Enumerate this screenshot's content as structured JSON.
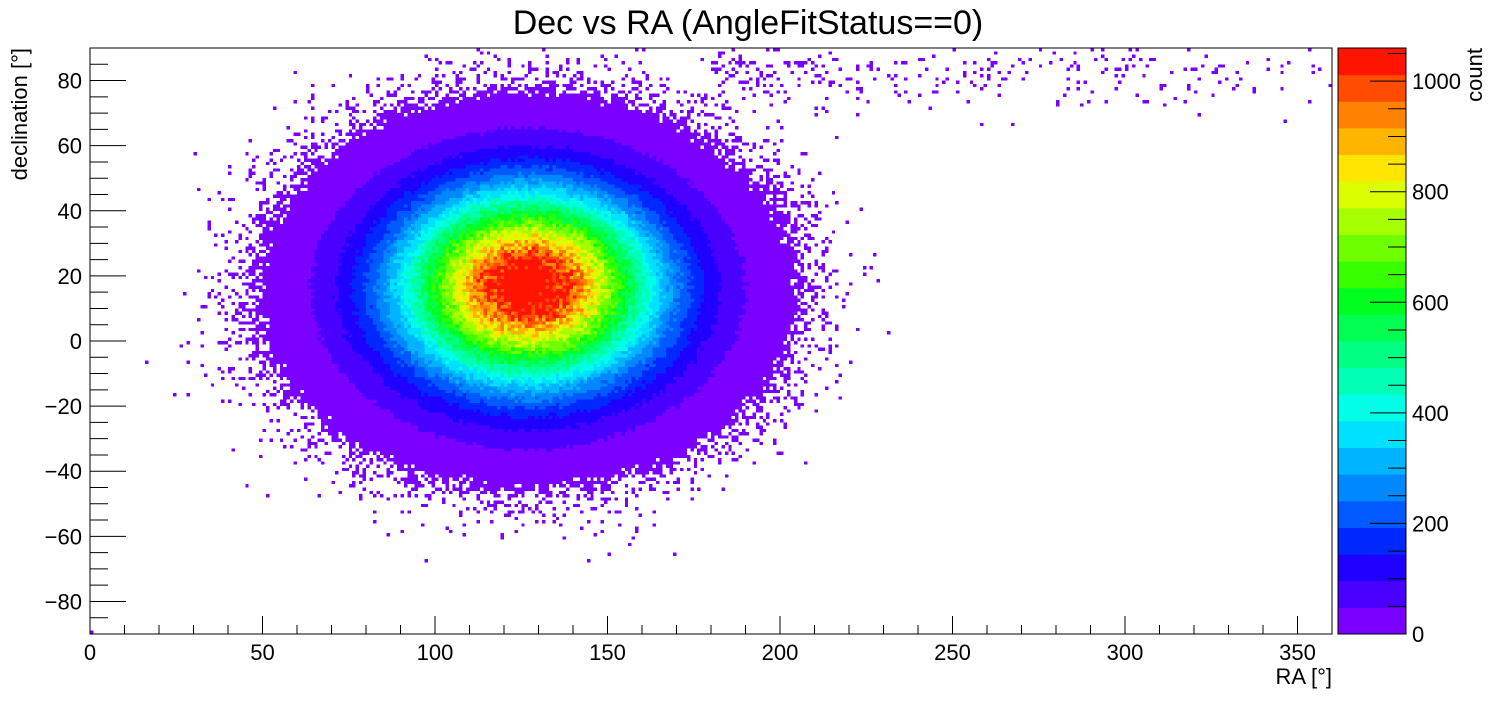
{
  "chart_data": {
    "type": "heatmap",
    "title": "Dec vs RA (AngleFitStatus==0)",
    "xlabel": "RA [°]",
    "ylabel": "declination [°]",
    "zlabel": "count",
    "xlim": [
      0,
      360
    ],
    "ylim": [
      -90,
      90
    ],
    "zlim": [
      0,
      1060
    ],
    "x_ticks": [
      0,
      50,
      100,
      150,
      200,
      250,
      300,
      350
    ],
    "x_tick_labels": [
      "0",
      "50",
      "100",
      "150",
      "200",
      "250",
      "300",
      "350"
    ],
    "y_ticks": [
      -80,
      -60,
      -40,
      -20,
      0,
      20,
      40,
      60,
      80
    ],
    "y_tick_labels": [
      "−80",
      "−60",
      "−40",
      "−20",
      "0",
      "20",
      "40",
      "60",
      "80"
    ],
    "z_ticks": [
      0,
      200,
      400,
      600,
      800,
      1000
    ],
    "z_tick_labels": [
      "0",
      "200",
      "400",
      "600",
      "800",
      "1000"
    ],
    "grid": false,
    "legend": "colorbar-right",
    "bins": {
      "nx": 360,
      "ny": 180
    },
    "peak": {
      "ra": 127,
      "dec": 17,
      "count": 1050
    },
    "palette": [
      "#7a00ff",
      "#4a00ff",
      "#1f00ff",
      "#0028ff",
      "#005aff",
      "#0088ff",
      "#00b4ff",
      "#00e0ff",
      "#00ffe6",
      "#00ffb4",
      "#00ff82",
      "#00ff50",
      "#00ff1e",
      "#37ff00",
      "#6eff00",
      "#a5ff00",
      "#dcff00",
      "#ffe600",
      "#ffb400",
      "#ff8200",
      "#ff4c00",
      "#ff1400"
    ],
    "empty_color": "#ffffff"
  }
}
